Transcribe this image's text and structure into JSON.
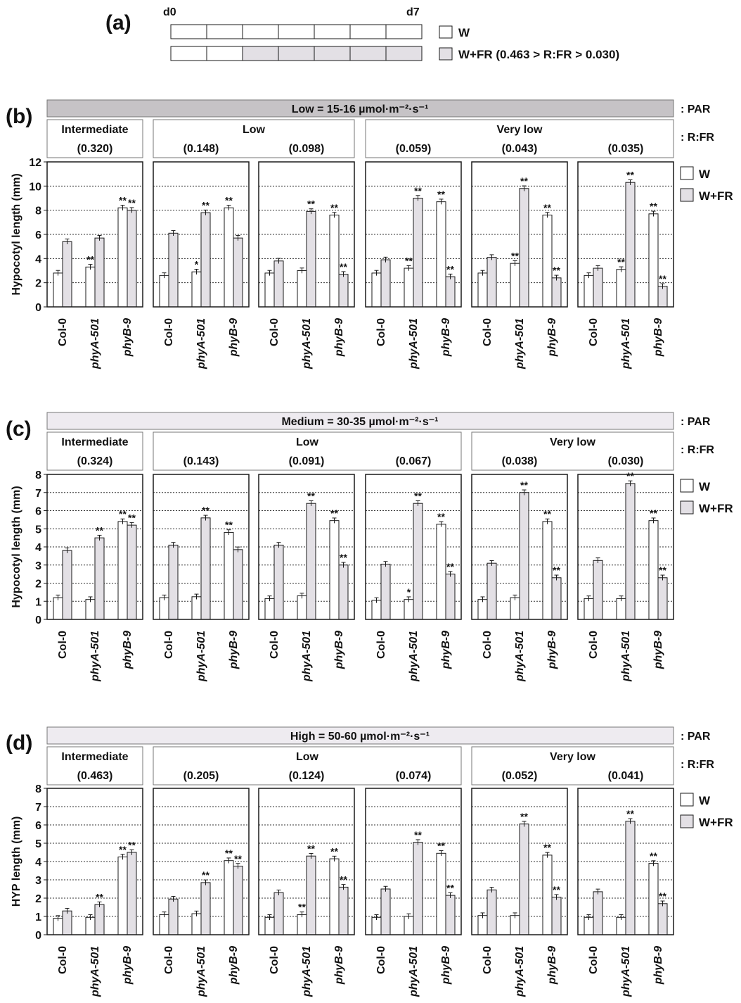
{
  "colors": {
    "W": "#ffffff",
    "WFR": "#e3e0e5",
    "header_low": "#c6c3c6",
    "header_other": "#eeebf0",
    "stroke": "#1a1a1a",
    "grid": "#333333"
  },
  "panel_a": {
    "label": "(a)",
    "start": "d0",
    "end": "d7",
    "w_fill": [
      false,
      false,
      false,
      false,
      false,
      false,
      false
    ],
    "wfr_fill": [
      false,
      false,
      true,
      true,
      true,
      true,
      true
    ],
    "legend": [
      "W",
      "W+FR (0.463 > R:FR > 0.030)"
    ]
  },
  "chart_data": [
    {
      "id": "b",
      "label": "(b)",
      "type": "bar",
      "par": "Low = 15-16 µmol·m⁻²·s⁻¹",
      "par_tag": ": PAR",
      "rfr_tag": ": R:FR",
      "ylabel": "Hypocotyl length (mm)",
      "ylim": [
        0,
        12
      ],
      "yticks": [
        0,
        2,
        4,
        6,
        8,
        10,
        12
      ],
      "categories": [
        "Col-0",
        "phyA-501",
        "phyB-9"
      ],
      "legend": [
        "W",
        "W+FR"
      ],
      "groups": [
        {
          "name": "Intermediate",
          "span": 1
        },
        {
          "name": "Low",
          "span": 2
        },
        {
          "name": "Very low",
          "span": 3
        }
      ],
      "rfr": [
        "(0.320)",
        "(0.148)",
        "(0.098)",
        "(0.059)",
        "(0.043)",
        "(0.035)"
      ],
      "subplots": [
        {
          "W": [
            2.8,
            3.3,
            8.2
          ],
          "WFR": [
            5.4,
            5.7,
            8.0
          ],
          "sig_W": [
            "",
            "**",
            "**"
          ],
          "sig_WFR": [
            "",
            "",
            "**"
          ]
        },
        {
          "W": [
            2.6,
            2.9,
            8.2
          ],
          "WFR": [
            6.1,
            7.8,
            5.7
          ],
          "sig_W": [
            "",
            "*",
            "**"
          ],
          "sig_WFR": [
            "",
            "**",
            ""
          ]
        },
        {
          "W": [
            2.8,
            3.0,
            7.6
          ],
          "WFR": [
            3.8,
            7.9,
            2.7
          ],
          "sig_W": [
            "",
            "",
            "**"
          ],
          "sig_WFR": [
            "",
            "**",
            "**"
          ]
        },
        {
          "W": [
            2.8,
            3.2,
            8.7
          ],
          "WFR": [
            3.9,
            9.0,
            2.5
          ],
          "sig_W": [
            "",
            "**",
            "**"
          ],
          "sig_WFR": [
            "",
            "**",
            "**"
          ]
        },
        {
          "W": [
            2.8,
            3.6,
            7.6
          ],
          "WFR": [
            4.1,
            9.8,
            2.4
          ],
          "sig_W": [
            "",
            "**",
            "**"
          ],
          "sig_WFR": [
            "",
            "**",
            "**"
          ]
        },
        {
          "W": [
            2.6,
            3.1,
            7.7
          ],
          "WFR": [
            3.2,
            10.3,
            1.7
          ],
          "sig_W": [
            "",
            "**",
            "**"
          ],
          "sig_WFR": [
            "",
            "**",
            "**"
          ]
        }
      ]
    },
    {
      "id": "c",
      "label": "(c)",
      "type": "bar",
      "par": "Medium = 30-35 µmol·m⁻²·s⁻¹",
      "par_tag": ": PAR",
      "rfr_tag": ": R:FR",
      "ylabel": "Hypocotyl length (mm)",
      "ylim": [
        0,
        8
      ],
      "yticks": [
        0,
        1,
        2,
        3,
        4,
        5,
        6,
        7,
        8
      ],
      "categories": [
        "Col-0",
        "phyA-501",
        "phyB-9"
      ],
      "legend": [
        "W",
        "W+FR"
      ],
      "groups": [
        {
          "name": "Intermediate",
          "span": 1
        },
        {
          "name": "Low",
          "span": 3
        },
        {
          "name": "Very low",
          "span": 2
        }
      ],
      "rfr": [
        "(0.324)",
        "(0.143)",
        "(0.091)",
        "(0.067)",
        "(0.038)",
        "(0.030)"
      ],
      "subplots": [
        {
          "W": [
            1.2,
            1.1,
            5.4
          ],
          "WFR": [
            3.8,
            4.5,
            5.2
          ],
          "sig_W": [
            "",
            "",
            "**"
          ],
          "sig_WFR": [
            "",
            "**",
            "**"
          ]
        },
        {
          "W": [
            1.2,
            1.25,
            4.8
          ],
          "WFR": [
            4.1,
            5.6,
            3.85
          ],
          "sig_W": [
            "",
            "",
            "**"
          ],
          "sig_WFR": [
            "",
            "**",
            ""
          ]
        },
        {
          "W": [
            1.15,
            1.3,
            5.45
          ],
          "WFR": [
            4.1,
            6.4,
            3.0
          ],
          "sig_W": [
            "",
            "",
            "**"
          ],
          "sig_WFR": [
            "",
            "**",
            "**"
          ]
        },
        {
          "W": [
            1.05,
            1.1,
            5.25
          ],
          "WFR": [
            3.05,
            6.4,
            2.5
          ],
          "sig_W": [
            "",
            "*",
            "**"
          ],
          "sig_WFR": [
            "",
            "**",
            "**"
          ]
        },
        {
          "W": [
            1.1,
            1.2,
            5.4
          ],
          "WFR": [
            3.1,
            7.0,
            2.3
          ],
          "sig_W": [
            "",
            "",
            "**"
          ],
          "sig_WFR": [
            "",
            "**",
            "**"
          ]
        },
        {
          "W": [
            1.15,
            1.15,
            5.45
          ],
          "WFR": [
            3.25,
            7.5,
            2.3
          ],
          "sig_W": [
            "",
            "",
            "**"
          ],
          "sig_WFR": [
            "",
            "**",
            "**"
          ]
        }
      ]
    },
    {
      "id": "d",
      "label": "(d)",
      "type": "bar",
      "par": "High = 50-60 µmol·m⁻²·s⁻¹",
      "par_tag": ": PAR",
      "rfr_tag": ": R:FR",
      "ylabel": "HYP length (mm)",
      "ylim": [
        0,
        8
      ],
      "yticks": [
        0,
        1,
        2,
        3,
        4,
        5,
        6,
        7,
        8
      ],
      "categories": [
        "Col-0",
        "phyA-501",
        "phyB-9"
      ],
      "legend": [
        "W",
        "W+FR"
      ],
      "groups": [
        {
          "name": "Intermediate",
          "span": 1
        },
        {
          "name": "Low",
          "span": 3
        },
        {
          "name": "Very low",
          "span": 2
        }
      ],
      "rfr": [
        "(0.463)",
        "(0.205)",
        "(0.124)",
        "(0.074)",
        "(0.052)",
        "(0.041)"
      ],
      "subplots": [
        {
          "W": [
            0.9,
            0.95,
            4.25
          ],
          "WFR": [
            1.3,
            1.65,
            4.5
          ],
          "sig_W": [
            "",
            "",
            "**"
          ],
          "sig_WFR": [
            "",
            "**",
            "**"
          ]
        },
        {
          "W": [
            1.1,
            1.15,
            4.05
          ],
          "WFR": [
            1.95,
            2.85,
            3.75
          ],
          "sig_W": [
            "",
            "",
            "**"
          ],
          "sig_WFR": [
            "",
            "**",
            "**"
          ]
        },
        {
          "W": [
            0.95,
            1.1,
            4.15
          ],
          "WFR": [
            2.3,
            4.3,
            2.6
          ],
          "sig_W": [
            "",
            "**",
            "**"
          ],
          "sig_WFR": [
            "",
            "**",
            "**"
          ]
        },
        {
          "W": [
            0.95,
            1.0,
            4.45
          ],
          "WFR": [
            2.5,
            5.05,
            2.15
          ],
          "sig_W": [
            "",
            "",
            "**"
          ],
          "sig_WFR": [
            "",
            "**",
            "**"
          ]
        },
        {
          "W": [
            1.05,
            1.05,
            4.35
          ],
          "WFR": [
            2.45,
            6.05,
            2.05
          ],
          "sig_W": [
            "",
            "",
            "**"
          ],
          "sig_WFR": [
            "",
            "**",
            "**"
          ]
        },
        {
          "W": [
            0.95,
            0.95,
            3.9
          ],
          "WFR": [
            2.35,
            6.2,
            1.7
          ],
          "sig_W": [
            "",
            "",
            "**"
          ],
          "sig_WFR": [
            "",
            "**",
            "**"
          ]
        }
      ]
    }
  ]
}
